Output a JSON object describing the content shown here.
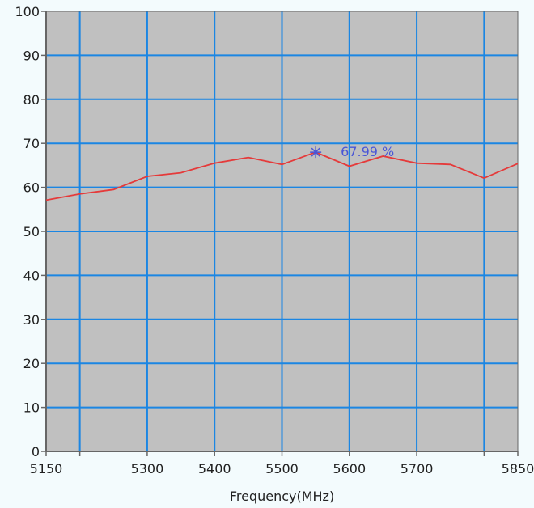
{
  "chart_data": {
    "type": "line",
    "xlabel": "Frequency(MHz)",
    "ylabel": "",
    "xlim": [
      5150,
      5850
    ],
    "ylim": [
      0,
      100
    ],
    "grid": true,
    "x_ticks": [
      {
        "value": 5150,
        "label": "5150"
      },
      {
        "value": 5200,
        "label": ""
      },
      {
        "value": 5300,
        "label": "5300"
      },
      {
        "value": 5400,
        "label": "5400"
      },
      {
        "value": 5500,
        "label": "5500"
      },
      {
        "value": 5600,
        "label": "5600"
      },
      {
        "value": 5700,
        "label": "5700"
      },
      {
        "value": 5800,
        "label": ""
      },
      {
        "value": 5850,
        "label": "5850"
      }
    ],
    "y_ticks": [
      {
        "value": 0,
        "label": "0"
      },
      {
        "value": 10,
        "label": "10"
      },
      {
        "value": 20,
        "label": "20"
      },
      {
        "value": 30,
        "label": "30"
      },
      {
        "value": 40,
        "label": "40"
      },
      {
        "value": 50,
        "label": "50"
      },
      {
        "value": 60,
        "label": "60"
      },
      {
        "value": 70,
        "label": "70"
      },
      {
        "value": 80,
        "label": "80"
      },
      {
        "value": 90,
        "label": "90"
      },
      {
        "value": 100,
        "label": "100"
      }
    ],
    "series": [
      {
        "x": [
          5150,
          5200,
          5250,
          5300,
          5350,
          5400,
          5450,
          5500,
          5550,
          5600,
          5650,
          5700,
          5750,
          5800,
          5850
        ],
        "values": [
          57.1,
          58.5,
          59.5,
          62.5,
          63.3,
          65.5,
          66.8,
          65.2,
          67.99,
          64.8,
          67.1,
          65.5,
          65.2,
          62.1,
          65.4
        ],
        "color": "#e53a3a"
      }
    ],
    "annotations": [
      {
        "x": 5550,
        "y": 67.99,
        "text": "67.99 %"
      }
    ]
  },
  "colors": {
    "page_background": "#f3fbfd",
    "plot_background": "#c0c0c0",
    "grid": "#1b86e3",
    "axis": "#666666",
    "series": "#e53a3a",
    "annotation": "#4a56d6"
  }
}
